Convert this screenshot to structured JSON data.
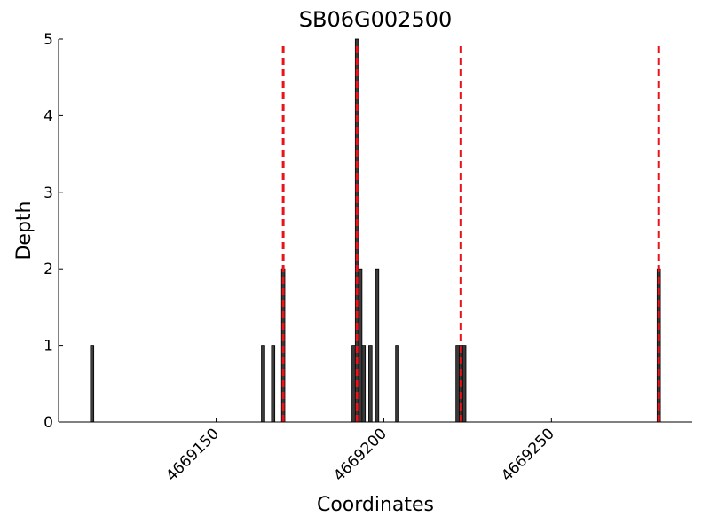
{
  "chart_data": {
    "type": "bar",
    "title": "SB06G002500",
    "xlabel": "Coordinates",
    "ylabel": "Depth",
    "x": [
      4669113,
      4669164,
      4669167,
      4669170,
      4669191,
      4669192,
      4669193,
      4669194,
      4669196,
      4669198,
      4669204,
      4669222,
      4669223,
      4669224,
      4669282
    ],
    "values": [
      1,
      1,
      1,
      2,
      1,
      5,
      2,
      1,
      1,
      2,
      1,
      1,
      1,
      1,
      2
    ],
    "color": "#3a3a3a",
    "markers": [
      4669170,
      4669192,
      4669223,
      4669282
    ],
    "marker_color": "#e8141a",
    "xlim": [
      4669103,
      4669292
    ],
    "xticks": [
      4669150,
      4669200,
      4669250
    ],
    "ylim": [
      0,
      5
    ],
    "yticks": [
      0,
      1,
      2,
      3,
      4,
      5
    ]
  }
}
